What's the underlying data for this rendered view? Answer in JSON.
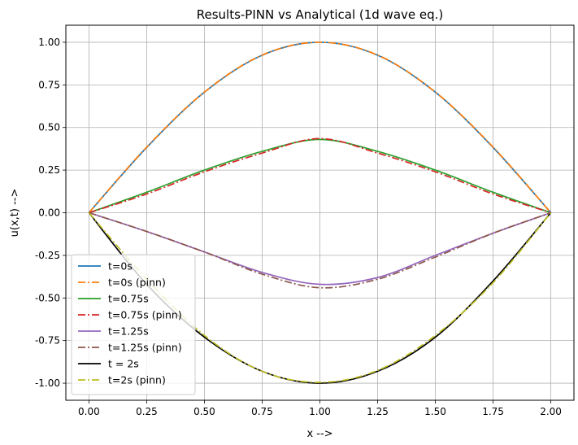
{
  "chart_data": {
    "type": "line",
    "title": "Results-PINN vs Analytical (1d wave eq.)",
    "xlabel": "x -->",
    "ylabel": "u(x,t) -->",
    "xlim": [
      -0.1,
      2.1
    ],
    "ylim": [
      -1.1,
      1.1
    ],
    "xticks": [
      "0.00",
      "0.25",
      "0.50",
      "0.75",
      "1.00",
      "1.25",
      "1.50",
      "1.75",
      "2.00"
    ],
    "yticks": [
      "-1.00",
      "-0.75",
      "-0.50",
      "-0.25",
      "0.00",
      "0.25",
      "0.50",
      "0.75",
      "1.00"
    ],
    "grid": true,
    "legend_position": "lower-left",
    "x": [
      0.0,
      0.25,
      0.5,
      0.75,
      1.0,
      1.25,
      1.5,
      1.75,
      2.0
    ],
    "series": [
      {
        "name": "t=0s",
        "color": "#1f77b4",
        "style": "solid",
        "values": [
          0.0,
          0.383,
          0.707,
          0.924,
          1.0,
          0.924,
          0.707,
          0.383,
          0.0
        ]
      },
      {
        "name": "t=0s (pinn)",
        "color": "#ff7f0e",
        "style": "dashdot",
        "values": [
          0.0,
          0.385,
          0.708,
          0.925,
          1.0,
          0.925,
          0.708,
          0.385,
          0.0
        ]
      },
      {
        "name": "t=0.75s",
        "color": "#2ca02c",
        "style": "solid",
        "values": [
          0.0,
          0.12,
          0.25,
          0.36,
          0.43,
          0.36,
          0.25,
          0.12,
          0.0
        ]
      },
      {
        "name": "t=0.75s (pinn)",
        "color": "#d62728",
        "style": "dashdot",
        "values": [
          0.0,
          0.11,
          0.24,
          0.35,
          0.435,
          0.35,
          0.24,
          0.11,
          0.0
        ]
      },
      {
        "name": "t=1.25s",
        "color": "#9467bd",
        "style": "solid",
        "values": [
          0.0,
          -0.11,
          -0.23,
          -0.35,
          -0.42,
          -0.38,
          -0.25,
          -0.12,
          0.0
        ]
      },
      {
        "name": "t=1.25s (pinn)",
        "color": "#8c564b",
        "style": "dashdot",
        "values": [
          0.0,
          -0.11,
          -0.23,
          -0.36,
          -0.44,
          -0.39,
          -0.26,
          -0.12,
          0.0
        ]
      },
      {
        "name": "t = 2s",
        "color": "#000000",
        "style": "solid",
        "values": [
          0.0,
          -0.42,
          -0.73,
          -0.93,
          -1.0,
          -0.93,
          -0.73,
          -0.4,
          0.0
        ]
      },
      {
        "name": "t=2s (pinn)",
        "color": "#bcbd22",
        "style": "dashdot",
        "values": [
          0.0,
          -0.39,
          -0.72,
          -0.93,
          -0.995,
          -0.925,
          -0.72,
          -0.41,
          0.0
        ]
      }
    ]
  }
}
